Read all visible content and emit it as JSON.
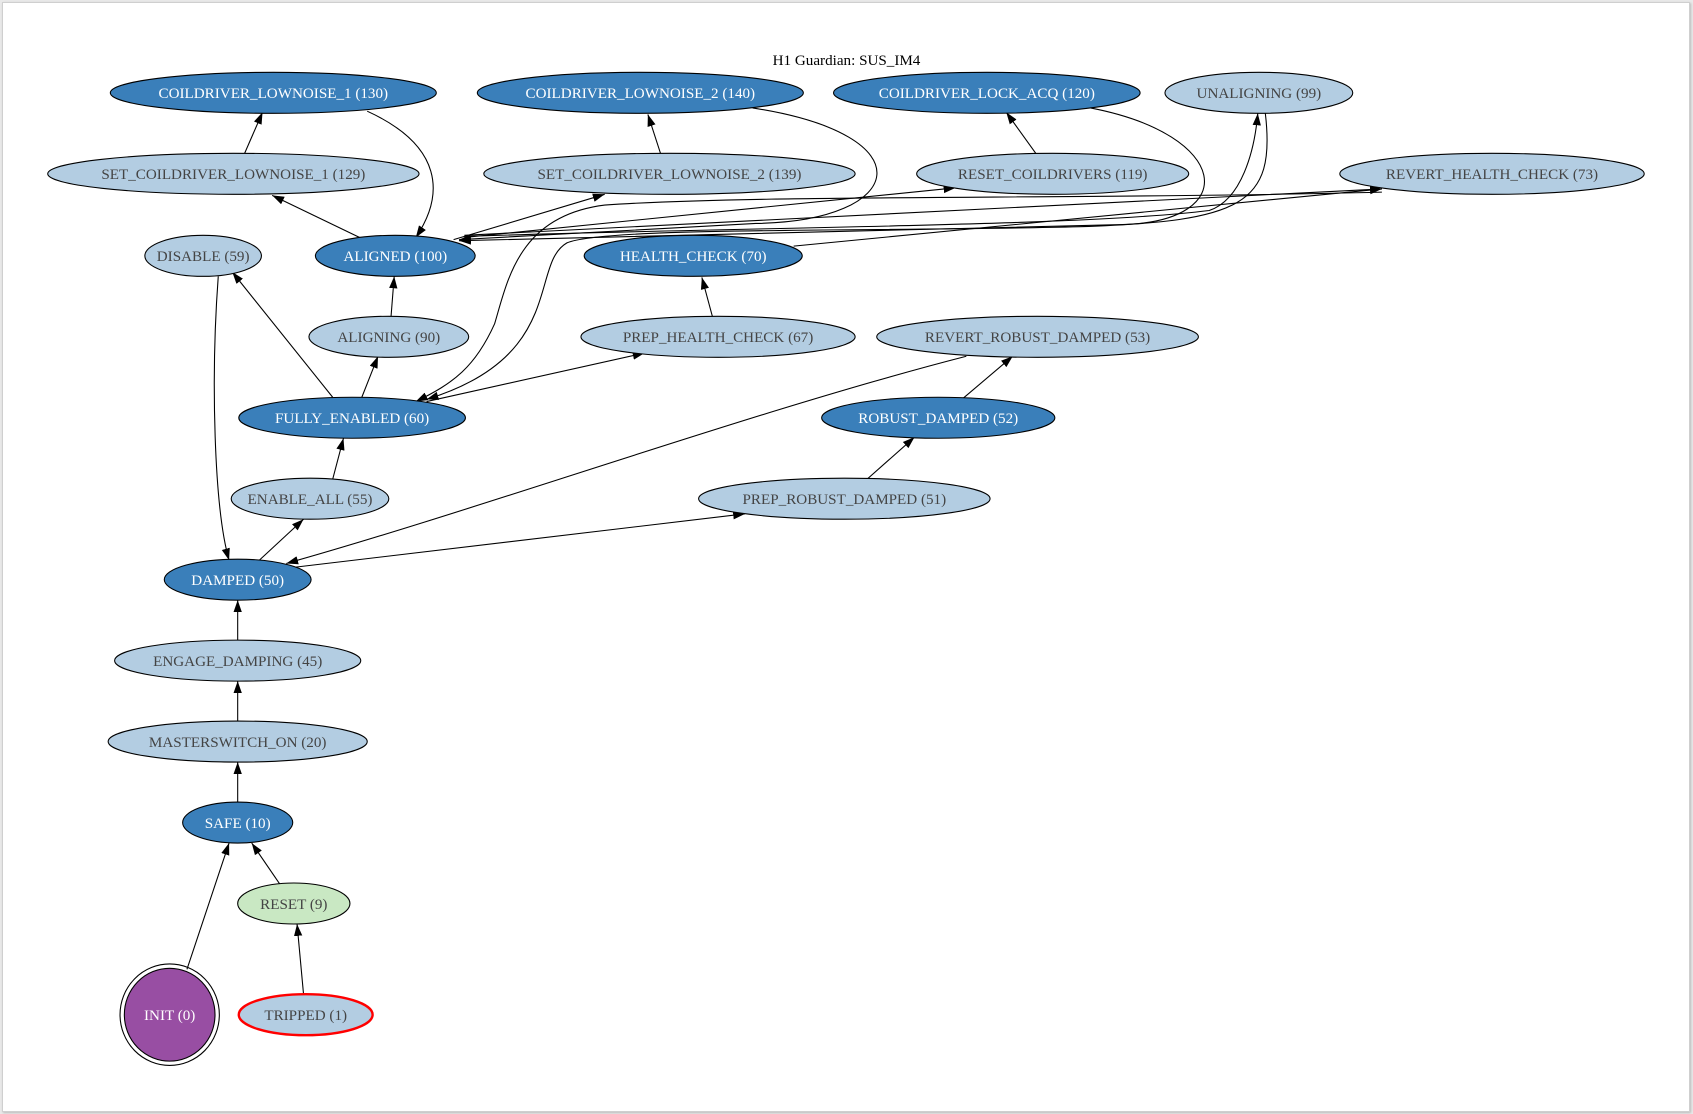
{
  "title": "H1 Guardian: SUS_IM4",
  "colors": {
    "main_state": "#3a7fba",
    "state": "#b3cde2",
    "reset": "#c9e8c3",
    "init": "#984ea3",
    "tripped_border": "#ff0000",
    "main_text": "#ffffff",
    "state_text": "#444444"
  },
  "nodes": [
    {
      "id": "C1",
      "label": "COILDRIVER_LOWNOISE_1 (130)",
      "kind": "main_state"
    },
    {
      "id": "C2",
      "label": "COILDRIVER_LOWNOISE_2 (140)",
      "kind": "main_state"
    },
    {
      "id": "LOCK",
      "label": "COILDRIVER_LOCK_ACQ (120)",
      "kind": "main_state"
    },
    {
      "id": "UNAL",
      "label": "UNALIGNING (99)",
      "kind": "state"
    },
    {
      "id": "S1",
      "label": "SET_COILDRIVER_LOWNOISE_1 (129)",
      "kind": "state"
    },
    {
      "id": "S2",
      "label": "SET_COILDRIVER_LOWNOISE_2 (139)",
      "kind": "state"
    },
    {
      "id": "RC",
      "label": "RESET_COILDRIVERS (119)",
      "kind": "state"
    },
    {
      "id": "RHC",
      "label": "REVERT_HEALTH_CHECK (73)",
      "kind": "state"
    },
    {
      "id": "DIS",
      "label": "DISABLE (59)",
      "kind": "state"
    },
    {
      "id": "AL",
      "label": "ALIGNED (100)",
      "kind": "main_state"
    },
    {
      "id": "HC",
      "label": "HEALTH_CHECK (70)",
      "kind": "main_state"
    },
    {
      "id": "ALG",
      "label": "ALIGNING (90)",
      "kind": "state"
    },
    {
      "id": "PHC",
      "label": "PREP_HEALTH_CHECK (67)",
      "kind": "state"
    },
    {
      "id": "RRD",
      "label": "REVERT_ROBUST_DAMPED (53)",
      "kind": "state"
    },
    {
      "id": "FE",
      "label": "FULLY_ENABLED (60)",
      "kind": "main_state"
    },
    {
      "id": "RD",
      "label": "ROBUST_DAMPED (52)",
      "kind": "main_state"
    },
    {
      "id": "EA",
      "label": "ENABLE_ALL (55)",
      "kind": "state"
    },
    {
      "id": "PRD",
      "label": "PREP_ROBUST_DAMPED (51)",
      "kind": "state"
    },
    {
      "id": "DMP",
      "label": "DAMPED (50)",
      "kind": "main_state"
    },
    {
      "id": "ED",
      "label": "ENGAGE_DAMPING (45)",
      "kind": "state"
    },
    {
      "id": "MS",
      "label": "MASTERSWITCH_ON (20)",
      "kind": "state"
    },
    {
      "id": "SAFE",
      "label": "SAFE (10)",
      "kind": "main_state"
    },
    {
      "id": "RST",
      "label": "RESET (9)",
      "kind": "reset"
    },
    {
      "id": "INIT",
      "label": "INIT (0)",
      "kind": "init"
    },
    {
      "id": "TRIP",
      "label": "TRIPPED (1)",
      "kind": "tripped"
    }
  ],
  "edges": [
    {
      "from": "S1",
      "to": "C1"
    },
    {
      "from": "AL",
      "to": "S1"
    },
    {
      "from": "C1",
      "to": "AL"
    },
    {
      "from": "S2",
      "to": "C2"
    },
    {
      "from": "AL",
      "to": "S2"
    },
    {
      "from": "C2",
      "to": "AL"
    },
    {
      "from": "RC",
      "to": "LOCK"
    },
    {
      "from": "AL",
      "to": "RC"
    },
    {
      "from": "LOCK",
      "to": "AL"
    },
    {
      "from": "AL",
      "to": "UNAL"
    },
    {
      "from": "UNAL",
      "to": "FE"
    },
    {
      "from": "AL",
      "to": "RHC"
    },
    {
      "from": "HC",
      "to": "RHC"
    },
    {
      "from": "RHC",
      "to": "FE"
    },
    {
      "from": "PHC",
      "to": "HC"
    },
    {
      "from": "FE",
      "to": "PHC"
    },
    {
      "from": "FE",
      "to": "DIS"
    },
    {
      "from": "FE",
      "to": "ALG"
    },
    {
      "from": "ALG",
      "to": "AL"
    },
    {
      "from": "DIS",
      "to": "DMP"
    },
    {
      "from": "EA",
      "to": "FE"
    },
    {
      "from": "DMP",
      "to": "EA"
    },
    {
      "from": "RRD",
      "to": "DMP"
    },
    {
      "from": "DMP",
      "to": "PRD"
    },
    {
      "from": "PRD",
      "to": "RD"
    },
    {
      "from": "RD",
      "to": "RRD"
    },
    {
      "from": "ED",
      "to": "DMP"
    },
    {
      "from": "MS",
      "to": "ED"
    },
    {
      "from": "SAFE",
      "to": "MS"
    },
    {
      "from": "RST",
      "to": "SAFE"
    },
    {
      "from": "INIT",
      "to": "SAFE"
    },
    {
      "from": "TRIP",
      "to": "RST"
    }
  ]
}
